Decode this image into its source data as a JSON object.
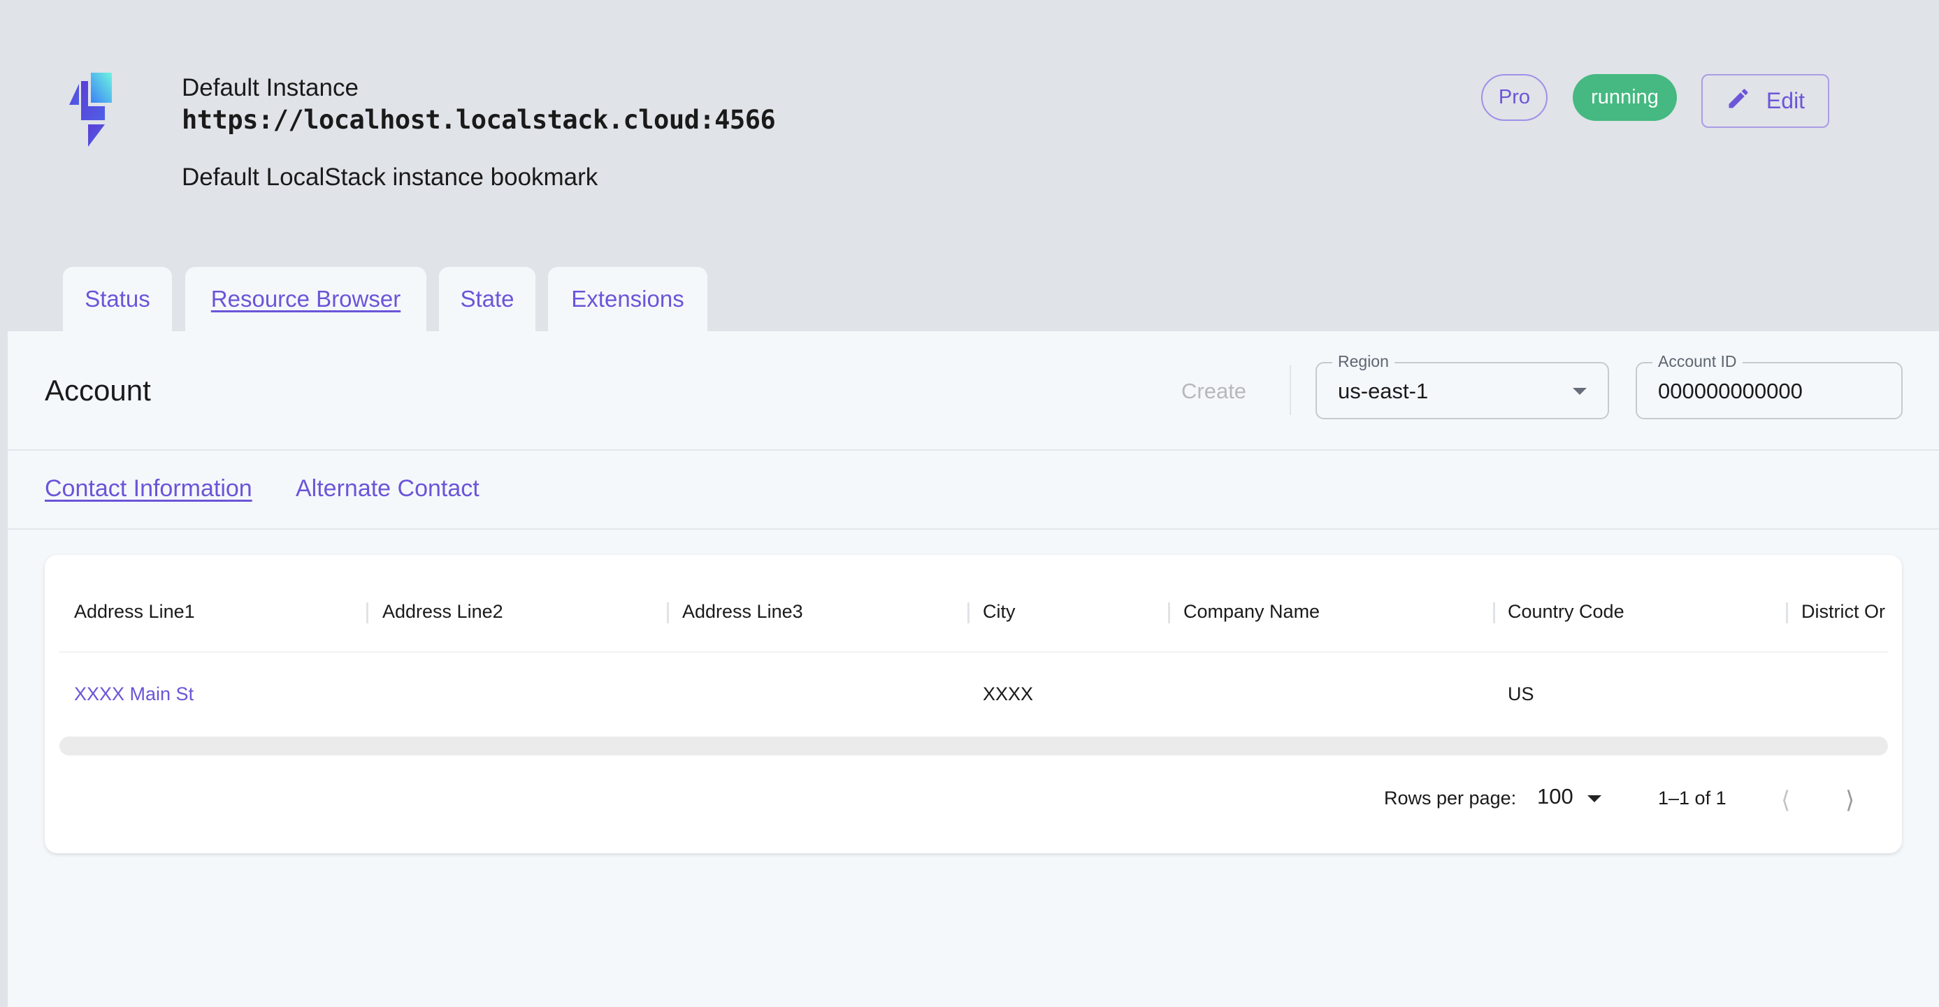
{
  "header": {
    "title": "Default Instance",
    "url": "https://localhost.localstack.cloud:4566",
    "description": "Default LocalStack instance bookmark",
    "badges": {
      "plan": "Pro",
      "status": "running"
    },
    "edit_label": "Edit"
  },
  "tabs": [
    {
      "label": "Status"
    },
    {
      "label": "Resource Browser",
      "active": true
    },
    {
      "label": "State"
    },
    {
      "label": "Extensions"
    }
  ],
  "toolbar": {
    "heading": "Account",
    "create_label": "Create",
    "region": {
      "label": "Region",
      "value": "us-east-1"
    },
    "account_id": {
      "label": "Account ID",
      "value": "000000000000"
    }
  },
  "subtabs": [
    {
      "label": "Contact Information",
      "active": true
    },
    {
      "label": "Alternate Contact"
    }
  ],
  "table": {
    "columns": [
      "Address Line1",
      "Address Line2",
      "Address Line3",
      "City",
      "Company Name",
      "Country Code",
      "District Or"
    ],
    "rows": [
      [
        "XXXX Main St",
        "",
        "",
        "XXXX",
        "",
        "US",
        ""
      ]
    ]
  },
  "pagination": {
    "rows_per_page_label": "Rows per page:",
    "rows_per_page": "100",
    "range": "1–1 of 1"
  },
  "colors": {
    "accent": "#6b55d8",
    "running": "#45b981",
    "background": "#e0e3e8",
    "panel": "#f5f8fb"
  }
}
